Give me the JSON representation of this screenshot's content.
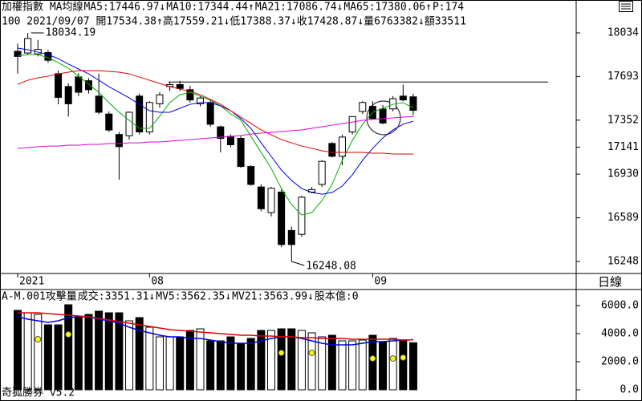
{
  "chart_data": [
    {
      "type": "candlestick",
      "title": "加權指數 MA均線",
      "info": "100 2021/09/07 開17534.38↑高17559.21↓低17388.37↓收17428.87↓量6763382↓額33511",
      "period_label": "日線",
      "categories": [
        "2021",
        null,
        null,
        null,
        null,
        null,
        null,
        null,
        null,
        null,
        null,
        null,
        null,
        "08",
        null,
        null,
        null,
        null,
        null,
        null,
        null,
        null,
        null,
        null,
        null,
        null,
        null,
        null,
        null,
        null,
        null,
        null,
        null,
        null,
        null,
        "09",
        null,
        null,
        null,
        null
      ],
      "ohlc": [
        [
          17890,
          17950,
          17715,
          17850
        ],
        [
          17877,
          18034.19,
          17860,
          17990
        ],
        [
          17870,
          17980,
          17850,
          17905
        ],
        [
          17880,
          17900,
          17800,
          17820
        ],
        [
          17715,
          17740,
          17476,
          17530
        ],
        [
          17615,
          17640,
          17380,
          17480
        ],
        [
          17690,
          17720,
          17540,
          17570
        ],
        [
          17660,
          17680,
          17560,
          17590
        ],
        [
          17540,
          17715,
          17400,
          17414
        ],
        [
          17400,
          17420,
          17260,
          17275
        ],
        [
          17240,
          17260,
          16887,
          17145
        ],
        [
          17230,
          17420,
          17200,
          17414
        ],
        [
          17540,
          17560,
          17240,
          17260
        ],
        [
          17260,
          17500,
          17240,
          17490
        ],
        [
          17480,
          17570,
          17450,
          17550
        ],
        [
          17615,
          17650,
          17580,
          17630
        ],
        [
          17630,
          17660,
          17580,
          17600
        ],
        [
          17590,
          17620,
          17490,
          17510
        ],
        [
          17480,
          17540,
          17460,
          17525
        ],
        [
          17490,
          17510,
          17300,
          17320
        ],
        [
          17300,
          17310,
          17100,
          17210
        ],
        [
          17225,
          17240,
          17140,
          17160
        ],
        [
          17210,
          17230,
          16980,
          16990
        ],
        [
          16990,
          17000,
          16840,
          16850
        ],
        [
          16830,
          16850,
          16640,
          16660
        ],
        [
          16630,
          16830,
          16600,
          16820
        ],
        [
          16790,
          16810,
          16360,
          16380
        ],
        [
          16490,
          16520,
          16248.08,
          16380
        ],
        [
          16460,
          16760,
          16440,
          16750
        ],
        [
          16790,
          16830,
          16780,
          16810
        ],
        [
          16850,
          17040,
          16830,
          17030
        ],
        [
          17170,
          17180,
          17060,
          17070
        ],
        [
          17070,
          17240,
          17000,
          17220
        ],
        [
          17260,
          17380,
          17240,
          17380
        ],
        [
          17420,
          17500,
          17400,
          17490
        ],
        [
          17460,
          17500,
          17360,
          17365
        ],
        [
          17440,
          17470,
          17320,
          17330
        ],
        [
          17440,
          17540,
          17420,
          17520
        ],
        [
          17540,
          17630,
          17500,
          17510
        ],
        [
          17534.38,
          17559.21,
          17388.37,
          17428.87
        ]
      ],
      "up_color": "#ffffff",
      "down_color": "#000000",
      "high_label": "18034.19",
      "low_label": "16248.08",
      "hline": 17650,
      "series": [
        {
          "name": "MA5:17446.97↓",
          "color": "#00b000",
          "values": [
            17852,
            17865,
            17865,
            17840,
            17802,
            17758,
            17696,
            17633,
            17570,
            17489,
            17414,
            17351,
            17288,
            17288,
            17382,
            17489,
            17551,
            17570,
            17539,
            17508,
            17464,
            17401,
            17351,
            17226,
            17100,
            16975,
            16818,
            16693,
            16611,
            16630,
            16724,
            16850,
            17038,
            17194,
            17320,
            17414,
            17445,
            17476,
            17489,
            17446.97
          ]
        },
        {
          "name": "MA10:17344.44↑",
          "color": "#0000e0",
          "values": [
            17915,
            17902,
            17884,
            17865,
            17833,
            17790,
            17752,
            17714,
            17664,
            17614,
            17570,
            17526,
            17476,
            17426,
            17414,
            17414,
            17445,
            17476,
            17489,
            17489,
            17464,
            17426,
            17364,
            17288,
            17175,
            17069,
            16962,
            16881,
            16818,
            16787,
            16774,
            16787,
            16837,
            16925,
            17038,
            17132,
            17213,
            17276,
            17320,
            17344.44
          ]
        },
        {
          "name": "MA21:17086.74↓",
          "color": "#e00000",
          "values": [
            17633,
            17664,
            17683,
            17696,
            17714,
            17727,
            17739,
            17739,
            17739,
            17733,
            17727,
            17714,
            17689,
            17664,
            17639,
            17614,
            17595,
            17577,
            17551,
            17514,
            17476,
            17426,
            17376,
            17326,
            17276,
            17238,
            17200,
            17175,
            17150,
            17132,
            17113,
            17100,
            17100,
            17100,
            17100,
            17094,
            17094,
            17088,
            17088,
            17086.74
          ]
        },
        {
          "name": "MA65:17380.06↑",
          "color": "#e000e0",
          "values": [
            17132,
            17138,
            17144,
            17150,
            17150,
            17157,
            17157,
            17163,
            17163,
            17169,
            17169,
            17175,
            17175,
            17182,
            17182,
            17188,
            17194,
            17200,
            17207,
            17213,
            17219,
            17226,
            17232,
            17244,
            17251,
            17257,
            17263,
            17270,
            17276,
            17288,
            17301,
            17313,
            17326,
            17338,
            17351,
            17357,
            17364,
            17370,
            17376,
            17380.06
          ]
        }
      ],
      "extra_legend": {
        "text": "P:174",
        "color": "#00b000"
      },
      "ylim": [
        16154,
        18291
      ],
      "yticks": [
        18034,
        17693,
        17352,
        17141,
        16930,
        16589,
        16248
      ]
    },
    {
      "type": "bar",
      "title": "A-M.001攻擊量",
      "value_legend": {
        "text": "成交:3351.31↓",
        "color": "#00b000"
      },
      "values": [
        5657,
        5486,
        5371,
        4628,
        4628,
        6057,
        5200,
        5371,
        5600,
        5486,
        5486,
        4914,
        5143,
        4457,
        3771,
        3771,
        3771,
        4228,
        4343,
        3486,
        3486,
        3771,
        3314,
        3657,
        4228,
        4228,
        4343,
        4343,
        4228,
        4057,
        3771,
        3885,
        3486,
        3486,
        3543,
        3885,
        3428,
        3657,
        3486,
        3351.31
      ],
      "dots": [
        null,
        null,
        3600,
        null,
        null,
        3940,
        null,
        null,
        null,
        null,
        null,
        null,
        null,
        null,
        null,
        null,
        null,
        null,
        null,
        null,
        null,
        null,
        null,
        null,
        null,
        null,
        2630,
        null,
        null,
        2630,
        null,
        null,
        null,
        null,
        null,
        2230,
        null,
        2230,
        2290,
        null
      ],
      "dot_color": "#ffff00",
      "series": [
        {
          "name": "MV5:3562.35↓",
          "color": "#0000e0",
          "values": [
            5200,
            5028,
            4914,
            4800,
            4914,
            5143,
            5200,
            5200,
            5028,
            4914,
            4743,
            4457,
            4228,
            4057,
            3885,
            3771,
            3771,
            3657,
            3657,
            3543,
            3428,
            3314,
            3314,
            3314,
            3486,
            3657,
            3771,
            3771,
            3657,
            3486,
            3314,
            3200,
            3200,
            3200,
            3314,
            3428,
            3428,
            3486,
            3543,
            3562.35
          ]
        },
        {
          "name": "MV21:3563.99↓",
          "color": "#e00000",
          "values": [
            5486,
            5486,
            5486,
            5428,
            5371,
            5314,
            5257,
            5200,
            5085,
            4971,
            4857,
            4743,
            4628,
            4514,
            4400,
            4286,
            4228,
            4171,
            4114,
            4057,
            4000,
            3943,
            3885,
            3885,
            3828,
            3828,
            3771,
            3771,
            3714,
            3714,
            3657,
            3657,
            3657,
            3600,
            3600,
            3600,
            3600,
            3600,
            3543,
            3563.99
          ]
        }
      ],
      "extra_legend": {
        "text": "股本億:0",
        "color": "#e000e0"
      },
      "footer": "奇狐勝券 v5.2",
      "ylim": [
        -800,
        7086
      ],
      "yticks": [
        {
          "value": 6000,
          "label": "6000.0"
        },
        {
          "value": 4000,
          "label": "4000.0"
        },
        {
          "value": 2000,
          "label": "2000.0"
        },
        {
          "value": 0,
          "label": "0.0"
        }
      ]
    }
  ]
}
